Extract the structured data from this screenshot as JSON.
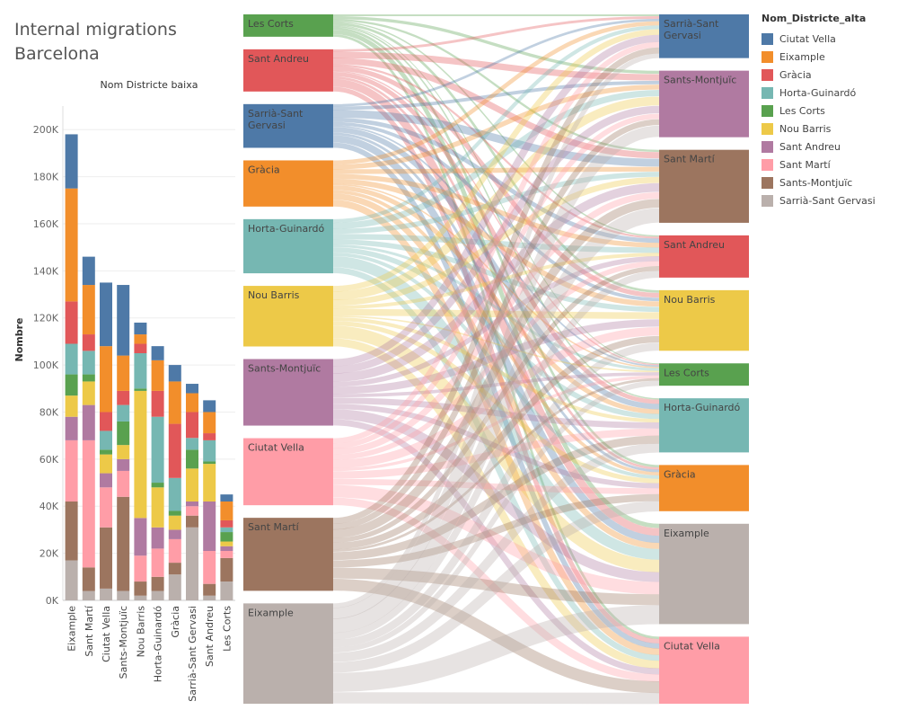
{
  "title_lines": [
    "Internal migrations",
    "Barcelona"
  ],
  "legend": {
    "title": "Nom_Districte_alta",
    "items": [
      {
        "name": "Ciutat Vella",
        "color": "#4e79a7"
      },
      {
        "name": "Eixample",
        "color": "#f28e2b"
      },
      {
        "name": "Gràcia",
        "color": "#e15759"
      },
      {
        "name": "Horta-Guinardó",
        "color": "#76b7b2"
      },
      {
        "name": "Les Corts",
        "color": "#59a14f"
      },
      {
        "name": "Nou Barris",
        "color": "#edc948"
      },
      {
        "name": "Sant Andreu",
        "color": "#b07aa1"
      },
      {
        "name": "Sant Martí",
        "color": "#ff9da7"
      },
      {
        "name": "Sants-Montjuïc",
        "color": "#9c755f"
      },
      {
        "name": "Sarrià-Sant Gervasi",
        "color": "#bab0ac"
      }
    ]
  },
  "chart_data": [
    {
      "type": "bar",
      "stacked": true,
      "title": "Nom Districte baixa",
      "xlabel": "",
      "ylabel": "Nombre",
      "ylim": [
        0,
        210000
      ],
      "yticks": [
        0,
        20000,
        40000,
        60000,
        80000,
        100000,
        120000,
        140000,
        160000,
        180000,
        200000
      ],
      "ytick_labels": [
        "0K",
        "20K",
        "40K",
        "60K",
        "80K",
        "100K",
        "120K",
        "140K",
        "160K",
        "180K",
        "200K"
      ],
      "categories": [
        "Eixample",
        "Sant Martí",
        "Ciutat Vella",
        "Sants-Montjuïc",
        "Nou Barris",
        "Horta-Guinardó",
        "Gràcia",
        "Sarrià-Sant Gervasi",
        "Sant Andreu",
        "Les Corts"
      ],
      "series": [
        {
          "name": "Sarrià-Sant Gervasi",
          "values": [
            17000,
            4000,
            5000,
            4000,
            2000,
            4000,
            11000,
            31000,
            2000,
            8000
          ]
        },
        {
          "name": "Sants-Montjuïc",
          "values": [
            25000,
            10000,
            26000,
            40000,
            6000,
            6000,
            5000,
            5000,
            5000,
            10000
          ]
        },
        {
          "name": "Sant Martí",
          "values": [
            26000,
            54000,
            17000,
            11000,
            11000,
            12000,
            10000,
            4000,
            14000,
            3000
          ]
        },
        {
          "name": "Sant Andreu",
          "values": [
            10000,
            15000,
            6000,
            5000,
            16000,
            9000,
            4000,
            2000,
            21000,
            2000
          ]
        },
        {
          "name": "Nou Barris",
          "values": [
            9000,
            10000,
            8000,
            6000,
            54000,
            17000,
            6000,
            14000,
            16000,
            2000
          ]
        },
        {
          "name": "Les Corts",
          "values": [
            9000,
            3000,
            2000,
            10000,
            1000,
            2000,
            2000,
            8000,
            1000,
            4000
          ]
        },
        {
          "name": "Horta-Guinardó",
          "values": [
            13000,
            10000,
            8000,
            7000,
            15000,
            28000,
            14000,
            5000,
            9000,
            2000
          ]
        },
        {
          "name": "Gràcia",
          "values": [
            18000,
            7000,
            8000,
            6000,
            4000,
            11000,
            23000,
            11000,
            3000,
            3000
          ]
        },
        {
          "name": "Eixample",
          "values": [
            48000,
            21000,
            28000,
            15000,
            4000,
            13000,
            18000,
            8000,
            9000,
            8000
          ]
        },
        {
          "name": "Ciutat Vella",
          "values": [
            23000,
            12000,
            27000,
            30000,
            5000,
            6000,
            7000,
            4000,
            5000,
            3000
          ]
        }
      ]
    },
    {
      "type": "sankey",
      "sources": [
        {
          "name": "Les Corts",
          "color": "#59a14f",
          "value": 45000
        },
        {
          "name": "Sant Andreu",
          "color": "#e15759",
          "value": 85000
        },
        {
          "name": "Sarrià-Sant Gervasi",
          "color": "#4e79a7",
          "value": 88000
        },
        {
          "name": "Gràcia",
          "color": "#f28e2b",
          "value": 93000
        },
        {
          "name": "Horta-Guinardó",
          "color": "#76b7b2",
          "value": 109000
        },
        {
          "name": "Nou Barris",
          "color": "#edc948",
          "value": 122000
        },
        {
          "name": "Sants-Montjuïc",
          "color": "#b07aa1",
          "value": 134000
        },
        {
          "name": "Ciutat Vella",
          "color": "#ff9da7",
          "value": 135000
        },
        {
          "name": "Sant Martí",
          "color": "#9c755f",
          "value": 147000
        },
        {
          "name": "Eixample",
          "color": "#bab0ac",
          "value": 202000
        }
      ],
      "targets": [
        {
          "name": "Sarrià-Sant Gervasi",
          "color": "#4e79a7",
          "value": 88000
        },
        {
          "name": "Sants-Montjuïc",
          "color": "#b07aa1",
          "value": 134000
        },
        {
          "name": "Sant Martí",
          "color": "#9c755f",
          "value": 147000
        },
        {
          "name": "Sant Andreu",
          "color": "#e15759",
          "value": 85000
        },
        {
          "name": "Nou Barris",
          "color": "#edc948",
          "value": 122000
        },
        {
          "name": "Les Corts",
          "color": "#59a14f",
          "value": 45000
        },
        {
          "name": "Horta-Guinardó",
          "color": "#76b7b2",
          "value": 109000
        },
        {
          "name": "Gràcia",
          "color": "#f28e2b",
          "value": 93000
        },
        {
          "name": "Eixample",
          "color": "#bab0ac",
          "value": 202000
        },
        {
          "name": "Ciutat Vella",
          "color": "#ff9da7",
          "value": 135000
        }
      ]
    }
  ]
}
